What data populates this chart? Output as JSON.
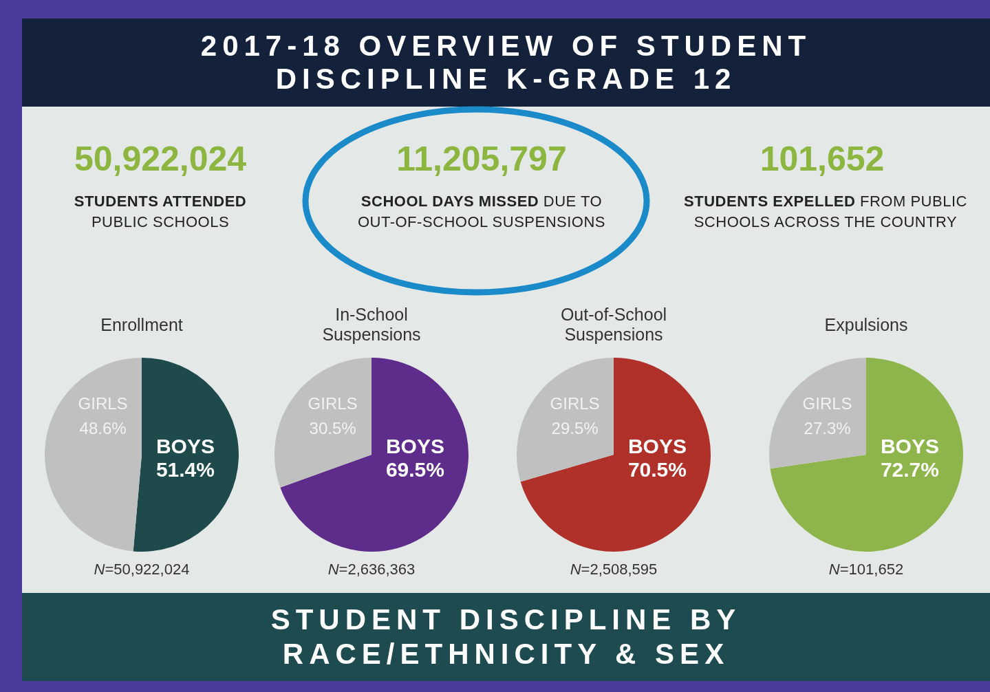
{
  "chart_data": [
    {
      "type": "other",
      "title": "2017-18 OVERVIEW OF STUDENT DISCIPLINE K-GRADE 12",
      "annotations": [
        "50,922,024",
        "STUDENTS ATTENDED",
        "PUBLIC SCHOOLS",
        "11,205,797",
        "SCHOOL DAYS MISSED",
        "DUE TO OUT-OF-SCHOOL SUSPENSIONS",
        "101,652",
        "STUDENTS EXPELLED",
        "FROM PUBLIC SCHOOLS ACROSS THE COUNTRY",
        "STUDENT DISCIPLINE BY RACE/ETHNICITY & SEX"
      ]
    },
    {
      "type": "pie",
      "title": "Enrollment",
      "categories": [
        "BOYS",
        "GIRLS"
      ],
      "values": [
        51.4,
        48.6
      ],
      "colors": [
        "#1f4a4c",
        "#c0c0c0"
      ],
      "value_labels": [
        "51.4%",
        "48.6%"
      ],
      "annotations": [
        "N=50,922,024"
      ]
    },
    {
      "type": "pie",
      "title": "In-School Suspensions",
      "categories": [
        "BOYS",
        "GIRLS"
      ],
      "values": [
        69.5,
        30.5
      ],
      "colors": [
        "#5e2d8c",
        "#c0c0c0"
      ],
      "value_labels": [
        "69.5%",
        "30.5%"
      ],
      "annotations": [
        "N=2,636,363"
      ]
    },
    {
      "type": "pie",
      "title": "Out-of-School Suspensions",
      "categories": [
        "BOYS",
        "GIRLS"
      ],
      "values": [
        70.5,
        29.5
      ],
      "colors": [
        "#b0302a",
        "#c0c0c0"
      ],
      "value_labels": [
        "70.5%",
        "29.5%"
      ],
      "annotations": [
        "N=2,508,595"
      ]
    },
    {
      "type": "pie",
      "title": "Expulsions",
      "categories": [
        "BOYS",
        "GIRLS"
      ],
      "values": [
        72.7,
        27.3
      ],
      "colors": [
        "#8db54b",
        "#c0c0c0"
      ],
      "value_labels": [
        "72.7%",
        "27.3%"
      ],
      "annotations": [
        "N=101,652"
      ]
    }
  ]
}
